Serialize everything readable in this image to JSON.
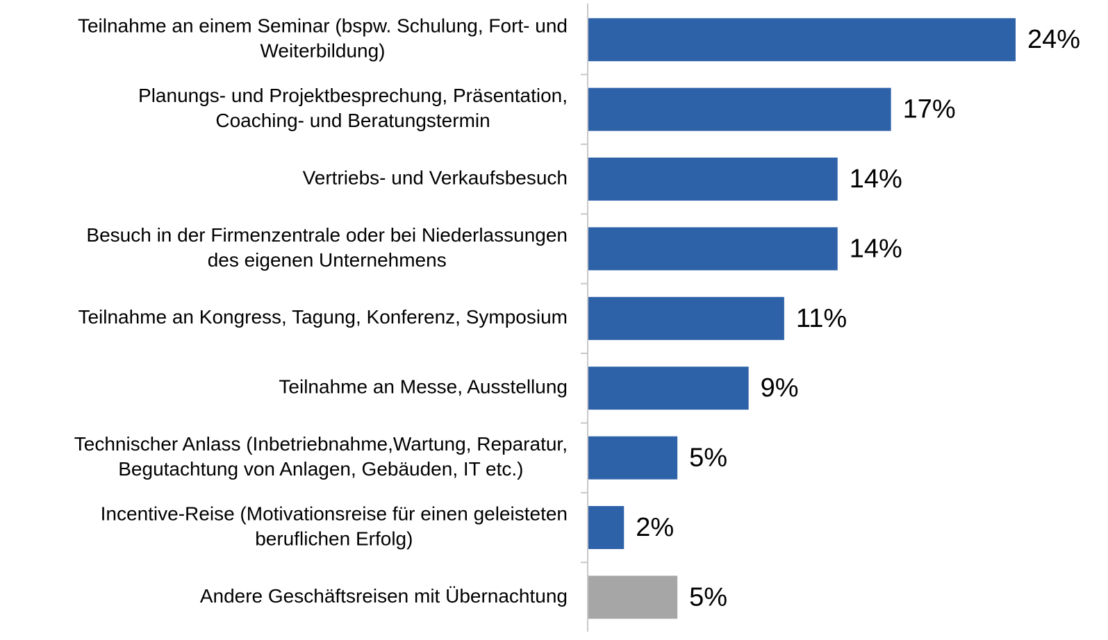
{
  "chart_data": {
    "type": "bar",
    "orientation": "horizontal",
    "categories": [
      [
        "Teilnahme an einem Seminar (bspw. Schulung, Fort- und",
        "Weiterbildung)"
      ],
      [
        "Planungs- und Projektbesprechung, Präsentation,",
        "Coaching- und Beratungstermin"
      ],
      [
        "Vertriebs- und Verkaufsbesuch"
      ],
      [
        "Besuch in der Firmenzentrale oder bei Niederlassungen",
        "des eigenen Unternehmens"
      ],
      [
        "Teilnahme an Kongress, Tagung, Konferenz, Symposium"
      ],
      [
        "Teilnahme an Messe, Ausstellung"
      ],
      [
        "Technischer Anlass (Inbetriebnahme,Wartung, Reparatur,",
        "Begutachtung von Anlagen, Gebäuden, IT etc.)"
      ],
      [
        "Incentive-Reise (Motivationsreise für einen geleisteten",
        "beruflichen Erfolg)"
      ],
      [
        "Andere Geschäftsreisen mit Übernachtung"
      ]
    ],
    "values": [
      24,
      17,
      14,
      14,
      11,
      9,
      5,
      2,
      5
    ],
    "value_labels": [
      "24%",
      "17%",
      "14%",
      "14%",
      "11%",
      "9%",
      "5%",
      "2%",
      "5%"
    ],
    "colors": [
      "#2e62a8",
      "#2e62a8",
      "#2e62a8",
      "#2e62a8",
      "#2e62a8",
      "#2e62a8",
      "#2e62a8",
      "#2e62a8",
      "#a6a6a6"
    ]
  }
}
